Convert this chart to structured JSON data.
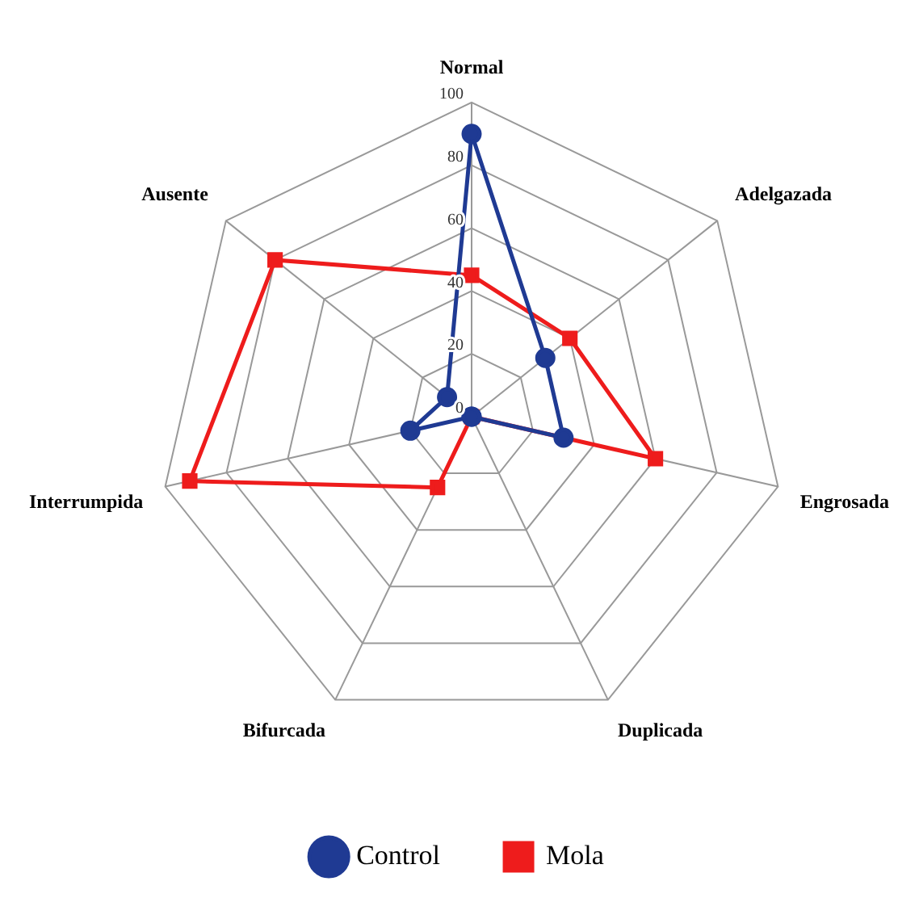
{
  "chart_data": {
    "type": "radar",
    "categories": [
      "Normal",
      "Adelgazada",
      "Engrosada",
      "Duplicada",
      "Bifurcada",
      "Interrumpida",
      "Ausente"
    ],
    "series": [
      {
        "name": "Control",
        "color": "#1f3a93",
        "marker": "circle",
        "values": [
          90,
          30,
          30,
          0,
          0,
          20,
          10
        ]
      },
      {
        "name": "Mola",
        "color": "#ee1c1c",
        "marker": "square",
        "values": [
          45,
          40,
          60,
          0,
          25,
          92,
          80
        ]
      }
    ],
    "ylim": [
      0,
      100
    ],
    "yticks": [
      0,
      20,
      40,
      60,
      80,
      100
    ],
    "grid": true,
    "legend": "bottom"
  }
}
